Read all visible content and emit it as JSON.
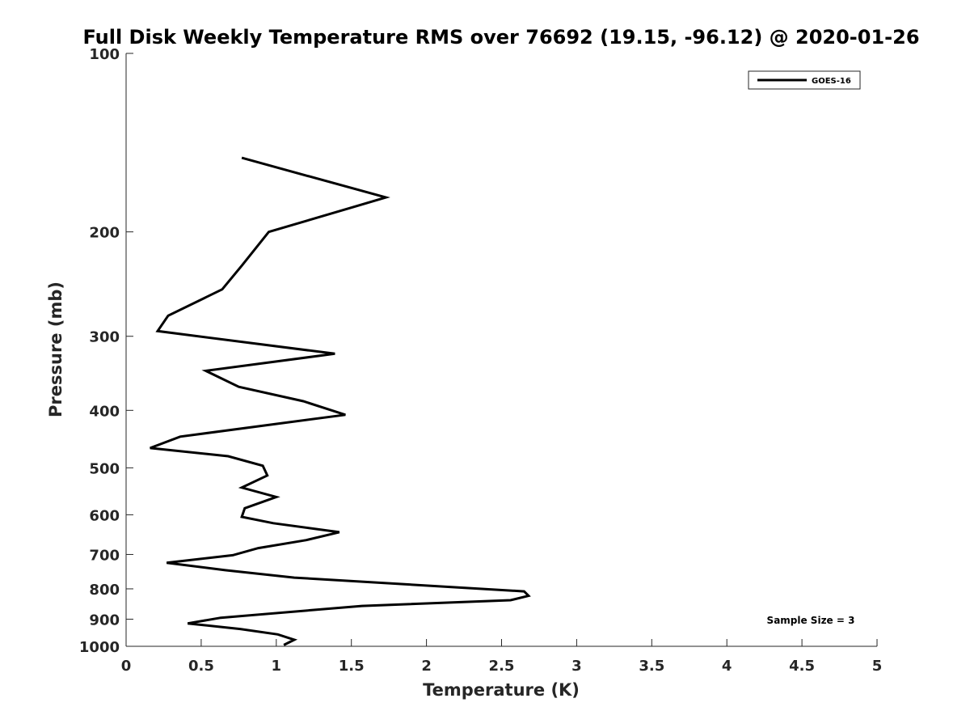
{
  "chart_data": {
    "type": "line",
    "title": "Full Disk Weekly Temperature RMS over 76692 (19.15, -96.12) @ 2020-01-26",
    "xlabel": "Temperature (K)",
    "ylabel": "Pressure (mb)",
    "xlim": [
      0,
      5
    ],
    "ylim": [
      100,
      1000
    ],
    "yscale": "log",
    "y_reversed": true,
    "xticks": [
      0,
      0.5,
      1,
      1.5,
      2,
      2.5,
      3,
      3.5,
      4,
      4.5,
      5
    ],
    "xtick_labels": [
      "0",
      "0.5",
      "1",
      "1.5",
      "2",
      "2.5",
      "3",
      "3.5",
      "4",
      "4.5",
      "5"
    ],
    "yticks": [
      100,
      200,
      300,
      400,
      500,
      600,
      700,
      800,
      900,
      1000
    ],
    "ytick_labels": [
      "100",
      "200",
      "300",
      "400",
      "500",
      "600",
      "700",
      "800",
      "900",
      "1000"
    ],
    "grid": false,
    "legend_position": "top-right",
    "series": [
      {
        "name": "GOES-16",
        "color": "#000000",
        "points": [
          {
            "x": 0.77,
            "y": 150
          },
          {
            "x": 1.73,
            "y": 175
          },
          {
            "x": 0.95,
            "y": 200
          },
          {
            "x": 0.77,
            "y": 228
          },
          {
            "x": 0.64,
            "y": 250
          },
          {
            "x": 0.28,
            "y": 277
          },
          {
            "x": 0.21,
            "y": 294
          },
          {
            "x": 1.39,
            "y": 321
          },
          {
            "x": 0.53,
            "y": 343
          },
          {
            "x": 0.75,
            "y": 365
          },
          {
            "x": 1.18,
            "y": 386
          },
          {
            "x": 1.46,
            "y": 407
          },
          {
            "x": 0.36,
            "y": 443
          },
          {
            "x": 0.16,
            "y": 463
          },
          {
            "x": 0.68,
            "y": 478
          },
          {
            "x": 0.91,
            "y": 496
          },
          {
            "x": 0.94,
            "y": 515
          },
          {
            "x": 0.77,
            "y": 540
          },
          {
            "x": 1.0,
            "y": 560
          },
          {
            "x": 0.79,
            "y": 585
          },
          {
            "x": 0.77,
            "y": 605
          },
          {
            "x": 0.98,
            "y": 620
          },
          {
            "x": 1.42,
            "y": 642
          },
          {
            "x": 1.2,
            "y": 662
          },
          {
            "x": 0.88,
            "y": 683
          },
          {
            "x": 0.71,
            "y": 702
          },
          {
            "x": 0.27,
            "y": 723
          },
          {
            "x": 0.66,
            "y": 744
          },
          {
            "x": 1.12,
            "y": 766
          },
          {
            "x": 2.65,
            "y": 808
          },
          {
            "x": 2.68,
            "y": 822
          },
          {
            "x": 2.56,
            "y": 836
          },
          {
            "x": 1.57,
            "y": 855
          },
          {
            "x": 0.63,
            "y": 895
          },
          {
            "x": 0.41,
            "y": 915
          },
          {
            "x": 0.76,
            "y": 935
          },
          {
            "x": 1.01,
            "y": 955
          },
          {
            "x": 1.12,
            "y": 975
          },
          {
            "x": 1.05,
            "y": 995
          }
        ]
      }
    ],
    "annotations": [
      "Sample Size = 3"
    ]
  }
}
